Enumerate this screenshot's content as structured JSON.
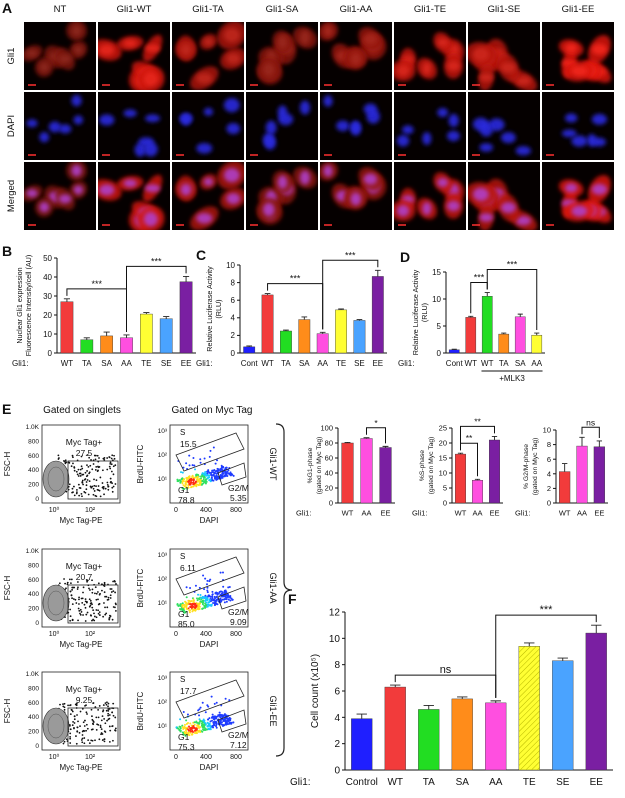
{
  "panel_labels": [
    "A",
    "B",
    "C",
    "D",
    "E",
    "F"
  ],
  "panel_a": {
    "columns": [
      "NT",
      "Gli1-WT",
      "Gli1-TA",
      "Gli1-SA",
      "Gli1-AA",
      "Gli1-TE",
      "Gli1-SE",
      "Gli1-EE"
    ],
    "rows": [
      "Gli1",
      "DAPI",
      "Merged"
    ]
  },
  "flow_cytometry": {
    "titles": [
      "Gated on singlets",
      "Gated on Myc Tag"
    ],
    "left_axes": {
      "ylabel": "FSC-H",
      "yticks": [
        "1.0K",
        "800",
        "600",
        "400",
        "200",
        "0"
      ],
      "xlabel": "Myc Tag-PE",
      "xticks": [
        "10⁰",
        "10²"
      ],
      "gate_name": "Myc Tag+"
    },
    "right_axes": {
      "ylabel": "BrdU-FITC",
      "yticks": [
        "10³",
        "10²",
        "10¹"
      ],
      "xlabel": "DAPI",
      "xticks": [
        "0",
        "400",
        "800"
      ],
      "s_label": "S",
      "g1_label": "G1",
      "g2m_label": "G2/M"
    },
    "rows": [
      {
        "label": "Gli1-WT",
        "myc_gate": "27.5",
        "s": "15.5",
        "g1": "78.8",
        "g2m": "5.35"
      },
      {
        "label": "Gli1-AA",
        "myc_gate": "20.7",
        "s": "6.11",
        "g1": "85.0",
        "g2m": "9.09"
      },
      {
        "label": "Gli1-EE",
        "myc_gate": "9.25",
        "s": "17.7",
        "g1": "75.3",
        "g2m": "7.12"
      }
    ]
  },
  "chart_data": [
    {
      "type": "bar",
      "ylabel": [
        "Nuclear Gli1 expression",
        "Fluorescence Intensity/cell (AU)"
      ],
      "x_prefix": "Gli1:",
      "categories": [
        "WT",
        "TA",
        "SA",
        "AA",
        "TE",
        "SE",
        "EE"
      ],
      "values": [
        27,
        7,
        9,
        8,
        20.5,
        18,
        37.5
      ],
      "errors": [
        1.5,
        1,
        2,
        1.5,
        0.8,
        1.2,
        2.8
      ],
      "colors": [
        "#f23b3b",
        "#22dd22",
        "#ff8c1a",
        "#ff4fe0",
        "#ffff33",
        "#4aa3ff",
        "#7a1fa2"
      ],
      "ylim": [
        0,
        50
      ],
      "yticks": [
        0,
        10,
        20,
        30,
        40,
        50
      ],
      "annotations": [
        {
          "text": "***",
          "between": [
            0,
            3
          ]
        },
        {
          "text": "***",
          "between": [
            3,
            6
          ]
        }
      ]
    },
    {
      "type": "bar",
      "ylabel": [
        "Relative Luciferase Activity",
        "(RLU)"
      ],
      "x_prefix": "Gli1:",
      "categories": [
        "Cont",
        "WT",
        "TA",
        "SA",
        "AA",
        "TE",
        "SE",
        "EE"
      ],
      "values": [
        0.7,
        6.6,
        2.5,
        3.8,
        2.2,
        4.9,
        3.7,
        8.7
      ],
      "errors": [
        0.1,
        0.15,
        0.1,
        0.3,
        0.15,
        0.1,
        0.1,
        0.7
      ],
      "colors": [
        "#1f1fff",
        "#f23b3b",
        "#22dd22",
        "#ff8c1a",
        "#ff4fe0",
        "#ffff33",
        "#4aa3ff",
        "#7a1fa2"
      ],
      "ylim": [
        0,
        10
      ],
      "yticks": [
        0,
        2,
        4,
        6,
        8,
        10
      ],
      "annotations": [
        {
          "text": "***",
          "between": [
            1,
            4
          ]
        },
        {
          "text": "***",
          "between": [
            4,
            7
          ]
        }
      ]
    },
    {
      "type": "bar",
      "ylabel": [
        "Relative Luciferase Activity",
        "(RLU)"
      ],
      "x_prefix": "Gli1:",
      "categories": [
        "Cont",
        "WT",
        "WT",
        "TA",
        "SA",
        "AA"
      ],
      "values": [
        0.6,
        6.6,
        10.5,
        3.5,
        6.7,
        3.3
      ],
      "errors": [
        0.1,
        0.2,
        0.7,
        0.2,
        0.5,
        0.4
      ],
      "colors": [
        "#1f1fff",
        "#f23b3b",
        "#22dd22",
        "#ff8c1a",
        "#ff4fe0",
        "#ffff33"
      ],
      "ylim": [
        0,
        15
      ],
      "yticks": [
        0,
        5,
        10,
        15
      ],
      "group_label": {
        "text": "+MLK3",
        "between": [
          2,
          5
        ]
      },
      "annotations": [
        {
          "text": "***",
          "between": [
            1,
            2
          ]
        },
        {
          "text": "***",
          "between": [
            2,
            5
          ]
        }
      ]
    },
    {
      "type": "bar",
      "ylabel": [
        "%G1-phase",
        "(gated on Myc Tag)"
      ],
      "x_prefix": "Gli1:",
      "categories": [
        "WT",
        "AA",
        "EE"
      ],
      "values": [
        80,
        86,
        74
      ],
      "errors": [
        0.8,
        1,
        1.5
      ],
      "colors": [
        "#f23b3b",
        "#ff4fe0",
        "#7a1fa2"
      ],
      "ylim": [
        0,
        100
      ],
      "yticks": [
        0,
        20,
        40,
        60,
        80,
        100
      ],
      "annotations": [
        {
          "text": "*",
          "between": [
            1,
            2
          ]
        }
      ]
    },
    {
      "type": "bar",
      "ylabel": [
        "%S-phase",
        "(gated on Myc Tag)"
      ],
      "x_prefix": "Gli1:",
      "categories": [
        "WT",
        "AA",
        "EE"
      ],
      "values": [
        16.3,
        7.6,
        21
      ],
      "errors": [
        0.3,
        0.3,
        1.2
      ],
      "colors": [
        "#f23b3b",
        "#ff4fe0",
        "#7a1fa2"
      ],
      "ylim": [
        0,
        25
      ],
      "yticks": [
        0,
        5,
        10,
        15,
        20,
        25
      ],
      "annotations": [
        {
          "text": "**",
          "between": [
            0,
            1
          ]
        },
        {
          "text": "**",
          "between": [
            0,
            2
          ]
        }
      ]
    },
    {
      "type": "bar",
      "ylabel": [
        "% G2/M-phase",
        "(gated on Myc Tag)"
      ],
      "x_prefix": "Gli1:",
      "categories": [
        "WT",
        "AA",
        "EE"
      ],
      "values": [
        4.3,
        7.8,
        7.7
      ],
      "errors": [
        1.1,
        1.2,
        0.8
      ],
      "colors": [
        "#f23b3b",
        "#ff4fe0",
        "#7a1fa2"
      ],
      "ylim": [
        0,
        10
      ],
      "yticks": [
        0,
        2,
        4,
        6,
        8,
        10
      ],
      "annotations": [
        {
          "text": "ns",
          "between": [
            1,
            2
          ]
        }
      ]
    },
    {
      "type": "bar",
      "ylabel": [
        "Cell count (x10⁵)"
      ],
      "x_prefix": "Gli1:",
      "categories": [
        "Control",
        "WT",
        "TA",
        "SA",
        "AA",
        "TE",
        "SE",
        "EE"
      ],
      "values": [
        3.9,
        6.3,
        4.6,
        5.4,
        5.1,
        9.4,
        8.3,
        10.4
      ],
      "errors": [
        0.35,
        0.15,
        0.3,
        0.15,
        0.15,
        0.25,
        0.2,
        0.6
      ],
      "colors": [
        "#1f1fff",
        "#f23b3b",
        "#22dd22",
        "#ff8c1a",
        "#ff4fe0",
        "#ffff33",
        "#4aa3ff",
        "#7a1fa2"
      ],
      "hatch": [
        false,
        false,
        false,
        false,
        false,
        true,
        false,
        false
      ],
      "ylim": [
        0,
        12
      ],
      "yticks": [
        0,
        2,
        4,
        6,
        8,
        10,
        12
      ],
      "annotations": [
        {
          "text": "ns",
          "between": [
            1,
            4
          ]
        },
        {
          "text": "***",
          "between": [
            4,
            7
          ]
        }
      ]
    }
  ]
}
